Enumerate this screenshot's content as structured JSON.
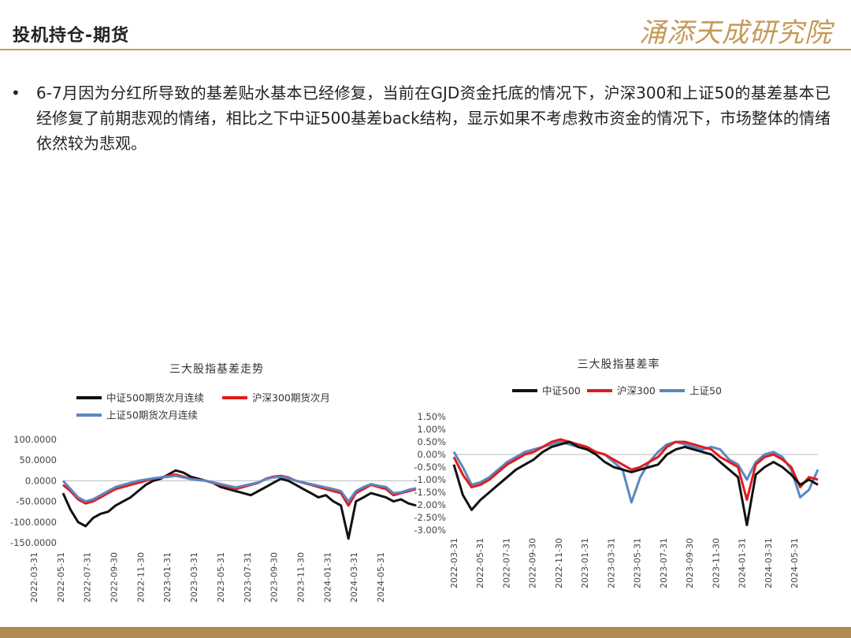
{
  "header": {
    "title": "投机持仓-期货",
    "logo_text": "涌添天成研究院"
  },
  "bullet": {
    "mark": "•",
    "text": "6-7月因为分红所导致的基差贴水基本已经修复，当前在GJD资金托底的情况下，沪深300和上证50的基差基本已经修复了前期悲观的情绪，相比之下中证500基差back结构，显示如果不考虑救市资金的情况下，市场整体的情绪依然较为悲观。"
  },
  "colors": {
    "zz500": "#111111",
    "hs300": "#e21b1b",
    "sz50": "#5b86c3",
    "accent": "#c8a060"
  },
  "chart_data": [
    {
      "type": "line",
      "title": "三大股指基差走势",
      "legend_position": "top",
      "ylim": [
        -150,
        100
      ],
      "yticks": [
        "100.0000",
        "50.0000",
        "0.0000",
        "-50.0000",
        "-100.0000",
        "-150.0000"
      ],
      "ytick_values": [
        100,
        50,
        0,
        -50,
        -100,
        -150
      ],
      "x_ticks": [
        "2022-03-31",
        "2022-05-31",
        "2022-07-31",
        "2022-09-30",
        "2022-11-30",
        "2023-01-31",
        "2023-03-31",
        "2023-05-31",
        "2023-07-31",
        "2023-09-30",
        "2023-11-30",
        "2024-01-31",
        "2024-03-31",
        "2024-05-31"
      ],
      "series": [
        {
          "name": "中证500期货次月连续",
          "color_key": "zz500",
          "values": [
            -30,
            -70,
            -100,
            -110,
            -90,
            -80,
            -75,
            -60,
            -50,
            -40,
            -25,
            -10,
            0,
            5,
            15,
            25,
            20,
            10,
            5,
            0,
            -5,
            -15,
            -20,
            -25,
            -30,
            -35,
            -25,
            -15,
            -5,
            5,
            0,
            -10,
            -20,
            -30,
            -40,
            -35,
            -50,
            -60,
            -140,
            -50,
            -40,
            -30,
            -35,
            -40,
            -50,
            -45,
            -55,
            -60
          ]
        },
        {
          "name": "沪深300期货次月",
          "color_key": "hs300",
          "values": [
            -10,
            -25,
            -45,
            -55,
            -50,
            -40,
            -30,
            -20,
            -15,
            -10,
            -5,
            0,
            5,
            8,
            12,
            15,
            10,
            5,
            2,
            0,
            -5,
            -10,
            -15,
            -20,
            -15,
            -10,
            -5,
            5,
            10,
            12,
            8,
            0,
            -5,
            -10,
            -15,
            -20,
            -25,
            -30,
            -60,
            -30,
            -20,
            -10,
            -15,
            -20,
            -35,
            -30,
            -25,
            -20
          ]
        },
        {
          "name": "上证50期货次月连续",
          "color_key": "sz50",
          "values": [
            0,
            -20,
            -40,
            -50,
            -45,
            -35,
            -25,
            -15,
            -10,
            -5,
            0,
            3,
            6,
            8,
            10,
            12,
            8,
            4,
            2,
            0,
            -4,
            -8,
            -12,
            -16,
            -12,
            -8,
            -4,
            4,
            8,
            10,
            6,
            0,
            -4,
            -8,
            -12,
            -16,
            -20,
            -25,
            -50,
            -25,
            -15,
            -8,
            -12,
            -15,
            -30,
            -28,
            -22,
            -18
          ]
        }
      ]
    },
    {
      "type": "line",
      "title": "三大股指基差率",
      "legend_position": "top",
      "ylim": [
        -3.0,
        1.5
      ],
      "yticks": [
        "1.50%",
        "1.00%",
        "0.50%",
        "0.00%",
        "-0.50%",
        "-1.00%",
        "-1.50%",
        "-2.00%",
        "-2.50%",
        "-3.00%"
      ],
      "ytick_values": [
        1.5,
        1.0,
        0.5,
        0.0,
        -0.5,
        -1.0,
        -1.5,
        -2.0,
        -2.5,
        -3.0
      ],
      "x_ticks": [
        "2022-03-31",
        "2022-05-31",
        "2022-07-31",
        "2022-09-30",
        "2022-11-30",
        "2023-01-31",
        "2023-03-31",
        "2023-05-31",
        "2023-07-31",
        "2023-09-30",
        "2023-11-30",
        "2024-01-31",
        "2024-03-31",
        "2024-05-31"
      ],
      "series": [
        {
          "name": "中证500",
          "color_key": "zz500",
          "values": [
            -0.4,
            -1.6,
            -2.2,
            -1.8,
            -1.5,
            -1.2,
            -0.9,
            -0.6,
            -0.4,
            -0.2,
            0.1,
            0.3,
            0.4,
            0.5,
            0.3,
            0.2,
            0.0,
            -0.3,
            -0.5,
            -0.6,
            -0.7,
            -0.6,
            -0.5,
            -0.4,
            0.0,
            0.2,
            0.3,
            0.2,
            0.1,
            0.0,
            -0.3,
            -0.6,
            -0.9,
            -2.8,
            -0.8,
            -0.5,
            -0.3,
            -0.5,
            -0.8,
            -1.2,
            -1.0,
            -1.2
          ]
        },
        {
          "name": "沪深300",
          "color_key": "hs300",
          "values": [
            -0.1,
            -0.8,
            -1.3,
            -1.2,
            -1.0,
            -0.7,
            -0.4,
            -0.2,
            0.0,
            0.1,
            0.3,
            0.5,
            0.6,
            0.5,
            0.4,
            0.3,
            0.1,
            0.0,
            -0.2,
            -0.4,
            -0.6,
            -0.5,
            -0.3,
            -0.1,
            0.3,
            0.5,
            0.5,
            0.4,
            0.3,
            0.2,
            -0.1,
            -0.3,
            -0.5,
            -1.8,
            -0.4,
            -0.1,
            0.0,
            -0.2,
            -0.5,
            -1.3,
            -0.9,
            -1.0
          ]
        },
        {
          "name": "上证50",
          "color_key": "sz50",
          "values": [
            0.1,
            -0.5,
            -1.2,
            -1.1,
            -0.9,
            -0.6,
            -0.3,
            -0.1,
            0.1,
            0.2,
            0.3,
            0.4,
            0.5,
            0.4,
            0.3,
            0.2,
            0.1,
            0.0,
            -0.3,
            -0.6,
            -1.9,
            -0.9,
            -0.3,
            0.1,
            0.4,
            0.5,
            0.4,
            0.3,
            0.2,
            0.3,
            0.2,
            -0.2,
            -0.4,
            -1.0,
            -0.3,
            0.0,
            0.1,
            -0.1,
            -0.6,
            -1.7,
            -1.4,
            -0.6
          ]
        }
      ]
    }
  ]
}
